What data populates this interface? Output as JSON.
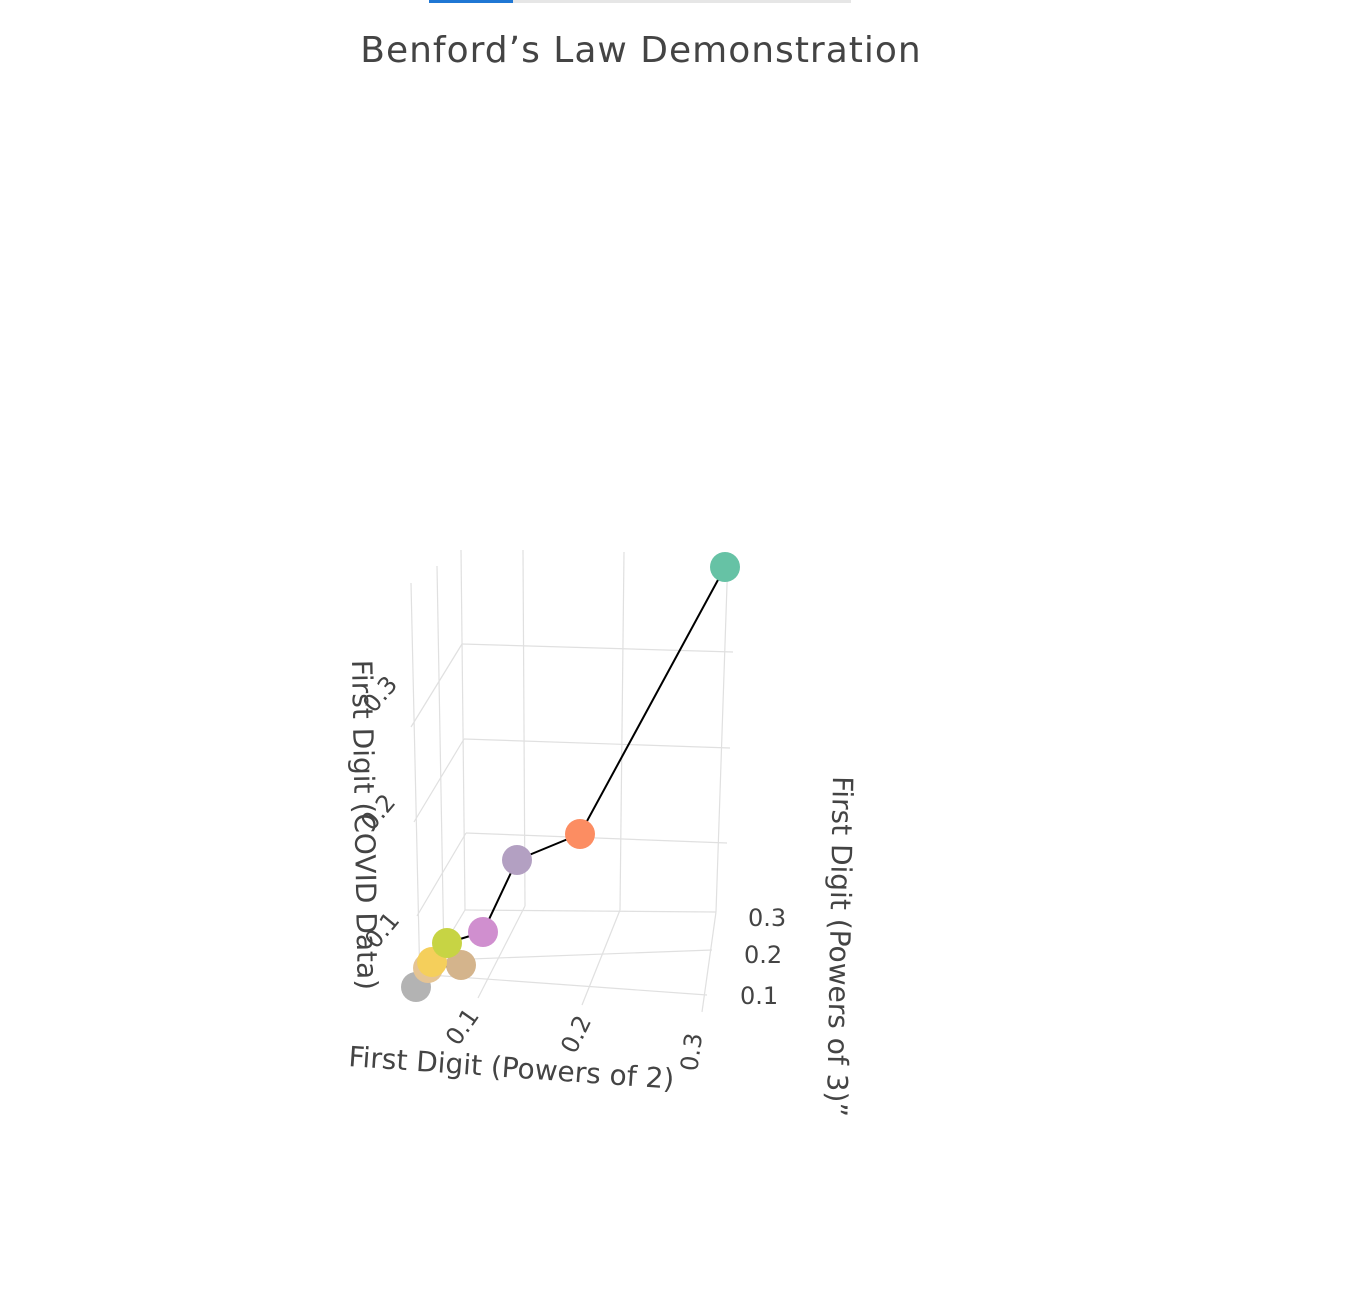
{
  "tabs": [
    {
      "label": "",
      "active": true
    },
    {
      "label": "",
      "active": false
    }
  ],
  "chart_data": {
    "type": "scatter3d",
    "title": "Benford’s Law Demonstration",
    "axes": {
      "x": {
        "label": "First Digit (Powers of 2)",
        "ticks": [
          "0.1",
          "0.2",
          "0.3"
        ],
        "range": [
          0.03,
          0.32
        ]
      },
      "y": {
        "label": "First Digit (Powers of 3)”",
        "ticks": [
          "0.1",
          "0.2",
          "0.3"
        ],
        "range": [
          0.03,
          0.32
        ]
      },
      "z": {
        "label": "First Digit (COVID Data)",
        "ticks": [
          "0.1",
          "0.2",
          "0.3"
        ],
        "range": [
          0.03,
          0.38
        ]
      }
    },
    "grid": true,
    "line_color": "#000000",
    "points": [
      {
        "digit": "1",
        "x": 0.301,
        "y": 0.301,
        "z": 0.301,
        "color": "#66c2a5"
      },
      {
        "digit": "2",
        "x": 0.176,
        "y": 0.176,
        "z": 0.176,
        "color": "#fc8d62"
      },
      {
        "digit": "3",
        "x": 0.125,
        "y": 0.125,
        "z": 0.125,
        "color": "#b3a0c2"
      },
      {
        "digit": "4",
        "x": 0.097,
        "y": 0.097,
        "z": 0.097,
        "color": "#d08fcf"
      },
      {
        "digit": "5",
        "x": 0.079,
        "y": 0.079,
        "z": 0.079,
        "color": "#c7d444"
      },
      {
        "digit": "6",
        "x": 0.067,
        "y": 0.067,
        "z": 0.067,
        "color": "#f5cf5b"
      },
      {
        "digit": "7",
        "x": 0.058,
        "y": 0.058,
        "z": 0.058,
        "color": "#d4b48c"
      },
      {
        "digit": "8",
        "x": 0.051,
        "y": 0.051,
        "z": 0.051,
        "color": "#e5c494"
      },
      {
        "digit": "9",
        "x": 0.046,
        "y": 0.046,
        "z": 0.046,
        "color": "#b3b3b3"
      }
    ]
  }
}
